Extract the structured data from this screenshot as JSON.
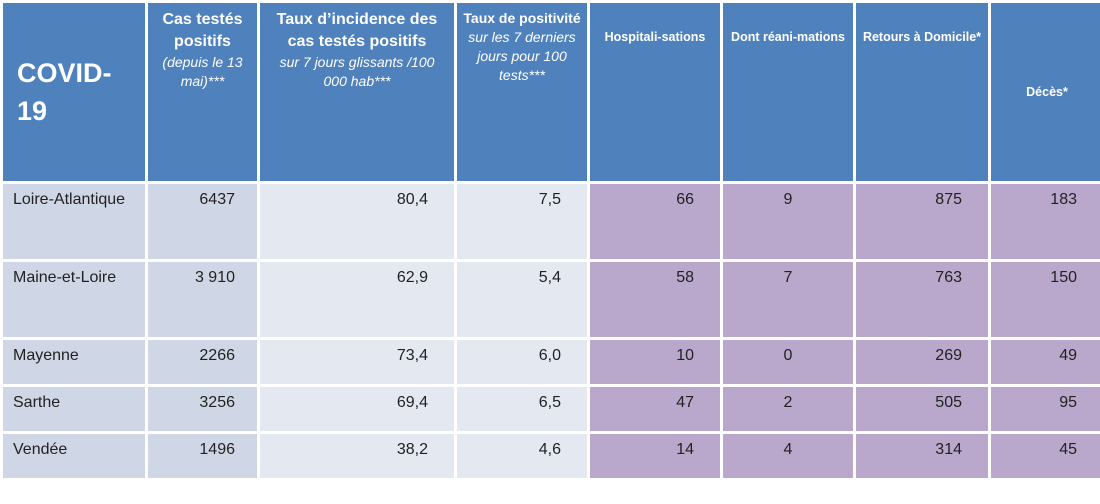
{
  "header": {
    "corner": "COVID-19",
    "cols": [
      {
        "bold": "Cas testés positifs",
        "ital": "(depuis le 13 mai)***"
      },
      {
        "bold": "Taux d’incidence des cas testés positifs",
        "ital": "sur 7 jours glissants /100 000 hab***"
      },
      {
        "bold": "Taux de positivité",
        "ital": "sur les 7 derniers jours pour 100 tests***"
      },
      {
        "bold": "Hospitali-sations",
        "ital": ""
      },
      {
        "bold": "Dont réani-mations",
        "ital": ""
      },
      {
        "bold": "Retours à Domicile*",
        "ital": ""
      },
      {
        "bold": "Décès*",
        "ital": ""
      }
    ]
  },
  "rows": [
    {
      "dept": "Loire-Atlantique",
      "cas": "6437",
      "incidence": "80,4",
      "positivite": "7,5",
      "hosp": "66",
      "rea": "9",
      "retours": "875",
      "deces": "183"
    },
    {
      "dept": "Maine-et-Loire",
      "cas": "3 910",
      "incidence": "62,9",
      "positivite": "5,4",
      "hosp": "58",
      "rea": "7",
      "retours": "763",
      "deces": "150"
    },
    {
      "dept": "Mayenne",
      "cas": "2266",
      "incidence": "73,4",
      "positivite": "6,0",
      "hosp": "10",
      "rea": "0",
      "retours": "269",
      "deces": "49"
    },
    {
      "dept": "Sarthe",
      "cas": "3256",
      "incidence": "69,4",
      "positivite": "6,5",
      "hosp": "47",
      "rea": "2",
      "retours": "505",
      "deces": "95"
    },
    {
      "dept": "Vendée",
      "cas": "1496",
      "incidence": "38,2",
      "positivite": "4,6",
      "hosp": "14",
      "rea": "4",
      "retours": "314",
      "deces": "45"
    }
  ]
}
